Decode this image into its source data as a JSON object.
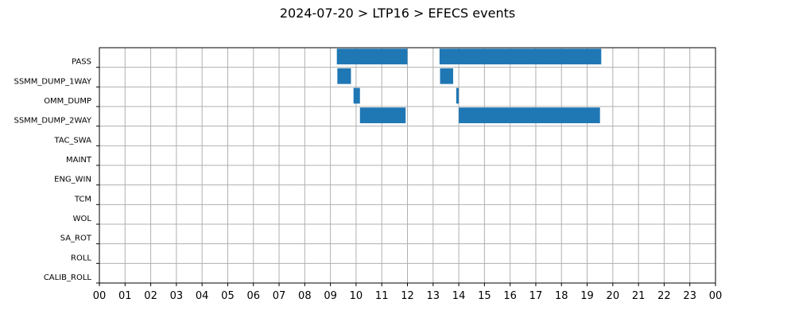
{
  "chart_data": {
    "type": "bar",
    "orientation": "horizontal-timeline",
    "title": "2024-07-20 > LTP16 > EFECS events",
    "xlabel": "",
    "ylabel": "",
    "x_unit": "hour of day",
    "xlim": [
      0,
      24
    ],
    "x_ticks": [
      "00",
      "01",
      "02",
      "03",
      "04",
      "05",
      "06",
      "07",
      "08",
      "09",
      "10",
      "11",
      "12",
      "13",
      "14",
      "15",
      "16",
      "17",
      "18",
      "19",
      "20",
      "21",
      "22",
      "23",
      "00"
    ],
    "categories": [
      "PASS",
      "SSMM_DUMP_1WAY",
      "OMM_DUMP",
      "SSMM_DUMP_2WAY",
      "TAC_SWA",
      "MAINT",
      "ENG_WIN",
      "TCM",
      "WOL",
      "SA_ROT",
      "ROLL",
      "CALIB_ROLL"
    ],
    "grid": true,
    "bar_color": "#1f77b4",
    "events": [
      {
        "category": "PASS",
        "start": 9.25,
        "end": 12.0
      },
      {
        "category": "PASS",
        "start": 13.25,
        "end": 19.55
      },
      {
        "category": "SSMM_DUMP_1WAY",
        "start": 9.27,
        "end": 9.8
      },
      {
        "category": "SSMM_DUMP_1WAY",
        "start": 13.27,
        "end": 13.78
      },
      {
        "category": "OMM_DUMP",
        "start": 9.9,
        "end": 10.15
      },
      {
        "category": "OMM_DUMP",
        "start": 13.9,
        "end": 14.0
      },
      {
        "category": "SSMM_DUMP_2WAY",
        "start": 10.15,
        "end": 11.93
      },
      {
        "category": "SSMM_DUMP_2WAY",
        "start": 14.0,
        "end": 19.5
      }
    ]
  }
}
